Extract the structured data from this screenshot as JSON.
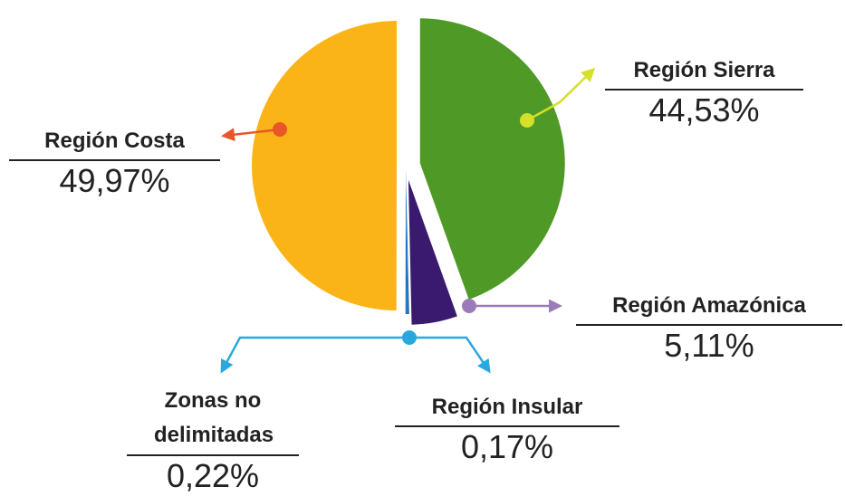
{
  "chart_data": {
    "type": "pie",
    "categories": [
      "Región Sierra",
      "Región Amazónica",
      "Región Insular",
      "Zonas no delimitadas",
      "Región Costa"
    ],
    "values": [
      44.53,
      5.11,
      0.17,
      0.22,
      49.97
    ],
    "value_labels": [
      "44,53%",
      "5,11%",
      "0,17%",
      "0,22%",
      "49,97%"
    ],
    "colors": [
      "#4f9a26",
      "#3a1a6e",
      "#1560a8",
      "#1a78c0",
      "#fbb417"
    ]
  }
}
